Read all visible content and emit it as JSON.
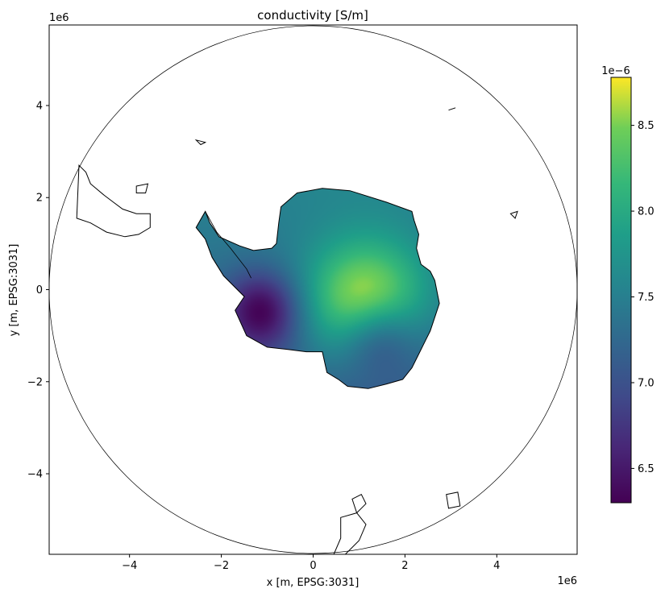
{
  "chart_data": {
    "type": "heatmap",
    "title": "conductivity [S/m]",
    "xlabel": "x [m, EPSG:3031]",
    "ylabel": "y [m, EPSG:3031]",
    "x_scale_label": "1e6",
    "y_scale_label": "1e6",
    "xlim": [
      -5.75,
      5.75
    ],
    "ylim": [
      -5.75,
      5.75
    ],
    "x_ticks": [
      -4,
      -2,
      0,
      2,
      4
    ],
    "y_ticks": [
      4,
      2,
      0,
      -2,
      -4
    ],
    "x_tick_labels": [
      "−4",
      "−2",
      "0",
      "2",
      "4"
    ],
    "y_tick_labels": [
      "4",
      "2",
      "0",
      "−2",
      "−4"
    ],
    "grid": false,
    "colorbar": {
      "colormap": "viridis",
      "scale_label": "1e−6",
      "range": [
        6.3,
        8.78
      ],
      "ticks": [
        8.5,
        8.0,
        7.5,
        7.0,
        6.5
      ],
      "tick_labels": [
        "8.5",
        "8.0",
        "7.5",
        "7.0",
        "6.5"
      ]
    },
    "field": {
      "base_value": 7.3,
      "maximum": {
        "x": 1.15,
        "y": -0.3,
        "value": 8.78
      },
      "minima": [
        {
          "x": -1.1,
          "y": -0.45,
          "value": 6.3
        },
        {
          "x": 1.4,
          "y": -1.0,
          "value": 6.45
        }
      ]
    },
    "boundary_circle": {
      "center": [
        0,
        0
      ],
      "radius": 5.75
    },
    "antarctica_outline": [
      [
        -1.5,
        -0.15
      ],
      [
        -1.7,
        -0.45
      ],
      [
        -1.45,
        -1.0
      ],
      [
        -1.0,
        -1.25
      ],
      [
        -0.55,
        -1.3
      ],
      [
        -0.15,
        -1.35
      ],
      [
        0.2,
        -1.35
      ],
      [
        0.3,
        -1.8
      ],
      [
        0.55,
        -1.95
      ],
      [
        0.75,
        -2.1
      ],
      [
        1.2,
        -2.15
      ],
      [
        1.6,
        -2.05
      ],
      [
        1.95,
        -1.95
      ],
      [
        2.15,
        -1.7
      ],
      [
        2.3,
        -1.4
      ],
      [
        2.45,
        -1.1
      ],
      [
        2.55,
        -0.9
      ],
      [
        2.65,
        -0.6
      ],
      [
        2.75,
        -0.3
      ],
      [
        2.65,
        0.2
      ],
      [
        2.55,
        0.4
      ],
      [
        2.35,
        0.55
      ],
      [
        2.25,
        0.9
      ],
      [
        2.3,
        1.2
      ],
      [
        2.2,
        1.5
      ],
      [
        2.15,
        1.7
      ],
      [
        1.6,
        1.9
      ],
      [
        0.8,
        2.15
      ],
      [
        0.2,
        2.2
      ],
      [
        -0.35,
        2.1
      ],
      [
        -0.7,
        1.8
      ],
      [
        -0.75,
        1.45
      ],
      [
        -0.8,
        1.0
      ],
      [
        -0.9,
        0.9
      ],
      [
        -1.3,
        0.85
      ],
      [
        -1.6,
        0.95
      ],
      [
        -2.05,
        1.15
      ],
      [
        -2.25,
        1.45
      ],
      [
        -2.35,
        1.7
      ],
      [
        -2.55,
        1.35
      ],
      [
        -2.35,
        1.1
      ],
      [
        -2.2,
        0.7
      ],
      [
        -1.95,
        0.3
      ]
    ],
    "peninsula_outline": [
      [
        -1.5,
        -0.15
      ],
      [
        -1.95,
        0.3
      ],
      [
        -2.2,
        0.7
      ],
      [
        -2.35,
        1.1
      ],
      [
        -2.55,
        1.35
      ],
      [
        -2.35,
        1.7
      ],
      [
        -2.1,
        1.25
      ],
      [
        -1.8,
        0.9
      ],
      [
        -1.45,
        0.45
      ],
      [
        -1.35,
        0.25
      ]
    ],
    "coastlines": [
      {
        "name": "south-america",
        "points": [
          [
            -5.1,
            2.7
          ],
          [
            -4.95,
            2.55
          ],
          [
            -4.85,
            2.3
          ],
          [
            -4.55,
            2.05
          ],
          [
            -4.35,
            1.9
          ],
          [
            -4.15,
            1.75
          ],
          [
            -3.85,
            1.65
          ],
          [
            -3.55,
            1.65
          ],
          [
            -3.55,
            1.35
          ],
          [
            -3.8,
            1.2
          ],
          [
            -4.1,
            1.15
          ],
          [
            -4.5,
            1.25
          ],
          [
            -4.85,
            1.45
          ],
          [
            -5.15,
            1.55
          ]
        ]
      },
      {
        "name": "falklands",
        "points": [
          [
            -3.85,
            2.25
          ],
          [
            -3.6,
            2.3
          ],
          [
            -3.65,
            2.1
          ],
          [
            -3.85,
            2.1
          ]
        ]
      },
      {
        "name": "south-georgia",
        "points": [
          [
            -2.55,
            3.25
          ],
          [
            -2.35,
            3.2
          ],
          [
            -2.45,
            3.15
          ]
        ]
      },
      {
        "name": "new-zealand-south",
        "points": [
          [
            0.6,
            -4.95
          ],
          [
            0.95,
            -4.85
          ],
          [
            1.15,
            -5.1
          ],
          [
            1.0,
            -5.45
          ],
          [
            0.7,
            -5.75
          ],
          [
            0.45,
            -5.75
          ],
          [
            0.6,
            -5.4
          ]
        ]
      },
      {
        "name": "new-zealand-north",
        "points": [
          [
            0.85,
            -4.55
          ],
          [
            1.05,
            -4.45
          ],
          [
            1.15,
            -4.65
          ],
          [
            0.95,
            -4.85
          ]
        ]
      },
      {
        "name": "tasmania",
        "points": [
          [
            2.9,
            -4.45
          ],
          [
            3.15,
            -4.4
          ],
          [
            3.2,
            -4.7
          ],
          [
            2.95,
            -4.75
          ]
        ]
      },
      {
        "name": "kerguelen",
        "points": [
          [
            4.3,
            1.65
          ],
          [
            4.45,
            1.7
          ],
          [
            4.4,
            1.55
          ]
        ]
      },
      {
        "name": "crozet",
        "points": [
          [
            2.95,
            3.9
          ],
          [
            3.1,
            3.95
          ]
        ]
      }
    ]
  }
}
